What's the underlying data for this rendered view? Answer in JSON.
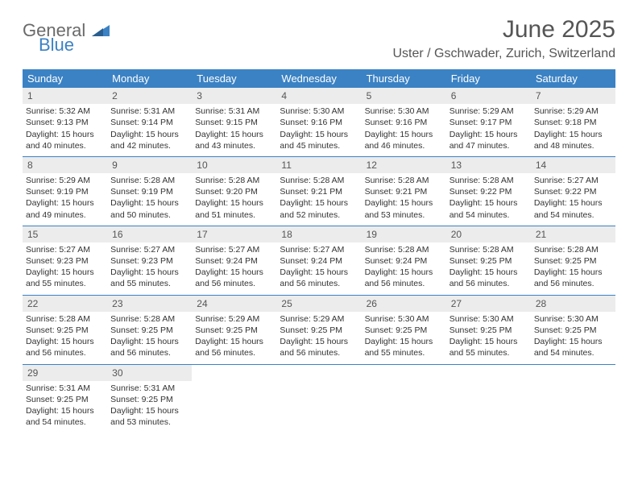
{
  "logo": {
    "word1": "General",
    "word2": "Blue"
  },
  "title": "June 2025",
  "location": "Uster / Gschwader, Zurich, Switzerland",
  "colors": {
    "header_bg": "#3b82c4",
    "header_text": "#ffffff",
    "daynum_bg": "#ececec",
    "text": "#333333",
    "title_text": "#555555",
    "logo_gray": "#6a6a6a",
    "logo_blue": "#3b82c4"
  },
  "dayNames": [
    "Sunday",
    "Monday",
    "Tuesday",
    "Wednesday",
    "Thursday",
    "Friday",
    "Saturday"
  ],
  "days": [
    {
      "n": 1,
      "sunrise": "5:32 AM",
      "sunset": "9:13 PM",
      "daylight": "15 hours and 40 minutes."
    },
    {
      "n": 2,
      "sunrise": "5:31 AM",
      "sunset": "9:14 PM",
      "daylight": "15 hours and 42 minutes."
    },
    {
      "n": 3,
      "sunrise": "5:31 AM",
      "sunset": "9:15 PM",
      "daylight": "15 hours and 43 minutes."
    },
    {
      "n": 4,
      "sunrise": "5:30 AM",
      "sunset": "9:16 PM",
      "daylight": "15 hours and 45 minutes."
    },
    {
      "n": 5,
      "sunrise": "5:30 AM",
      "sunset": "9:16 PM",
      "daylight": "15 hours and 46 minutes."
    },
    {
      "n": 6,
      "sunrise": "5:29 AM",
      "sunset": "9:17 PM",
      "daylight": "15 hours and 47 minutes."
    },
    {
      "n": 7,
      "sunrise": "5:29 AM",
      "sunset": "9:18 PM",
      "daylight": "15 hours and 48 minutes."
    },
    {
      "n": 8,
      "sunrise": "5:29 AM",
      "sunset": "9:19 PM",
      "daylight": "15 hours and 49 minutes."
    },
    {
      "n": 9,
      "sunrise": "5:28 AM",
      "sunset": "9:19 PM",
      "daylight": "15 hours and 50 minutes."
    },
    {
      "n": 10,
      "sunrise": "5:28 AM",
      "sunset": "9:20 PM",
      "daylight": "15 hours and 51 minutes."
    },
    {
      "n": 11,
      "sunrise": "5:28 AM",
      "sunset": "9:21 PM",
      "daylight": "15 hours and 52 minutes."
    },
    {
      "n": 12,
      "sunrise": "5:28 AM",
      "sunset": "9:21 PM",
      "daylight": "15 hours and 53 minutes."
    },
    {
      "n": 13,
      "sunrise": "5:28 AM",
      "sunset": "9:22 PM",
      "daylight": "15 hours and 54 minutes."
    },
    {
      "n": 14,
      "sunrise": "5:27 AM",
      "sunset": "9:22 PM",
      "daylight": "15 hours and 54 minutes."
    },
    {
      "n": 15,
      "sunrise": "5:27 AM",
      "sunset": "9:23 PM",
      "daylight": "15 hours and 55 minutes."
    },
    {
      "n": 16,
      "sunrise": "5:27 AM",
      "sunset": "9:23 PM",
      "daylight": "15 hours and 55 minutes."
    },
    {
      "n": 17,
      "sunrise": "5:27 AM",
      "sunset": "9:24 PM",
      "daylight": "15 hours and 56 minutes."
    },
    {
      "n": 18,
      "sunrise": "5:27 AM",
      "sunset": "9:24 PM",
      "daylight": "15 hours and 56 minutes."
    },
    {
      "n": 19,
      "sunrise": "5:28 AM",
      "sunset": "9:24 PM",
      "daylight": "15 hours and 56 minutes."
    },
    {
      "n": 20,
      "sunrise": "5:28 AM",
      "sunset": "9:25 PM",
      "daylight": "15 hours and 56 minutes."
    },
    {
      "n": 21,
      "sunrise": "5:28 AM",
      "sunset": "9:25 PM",
      "daylight": "15 hours and 56 minutes."
    },
    {
      "n": 22,
      "sunrise": "5:28 AM",
      "sunset": "9:25 PM",
      "daylight": "15 hours and 56 minutes."
    },
    {
      "n": 23,
      "sunrise": "5:28 AM",
      "sunset": "9:25 PM",
      "daylight": "15 hours and 56 minutes."
    },
    {
      "n": 24,
      "sunrise": "5:29 AM",
      "sunset": "9:25 PM",
      "daylight": "15 hours and 56 minutes."
    },
    {
      "n": 25,
      "sunrise": "5:29 AM",
      "sunset": "9:25 PM",
      "daylight": "15 hours and 56 minutes."
    },
    {
      "n": 26,
      "sunrise": "5:30 AM",
      "sunset": "9:25 PM",
      "daylight": "15 hours and 55 minutes."
    },
    {
      "n": 27,
      "sunrise": "5:30 AM",
      "sunset": "9:25 PM",
      "daylight": "15 hours and 55 minutes."
    },
    {
      "n": 28,
      "sunrise": "5:30 AM",
      "sunset": "9:25 PM",
      "daylight": "15 hours and 54 minutes."
    },
    {
      "n": 29,
      "sunrise": "5:31 AM",
      "sunset": "9:25 PM",
      "daylight": "15 hours and 54 minutes."
    },
    {
      "n": 30,
      "sunrise": "5:31 AM",
      "sunset": "9:25 PM",
      "daylight": "15 hours and 53 minutes."
    }
  ],
  "labels": {
    "sunrise": "Sunrise:",
    "sunset": "Sunset:",
    "daylight": "Daylight:"
  }
}
